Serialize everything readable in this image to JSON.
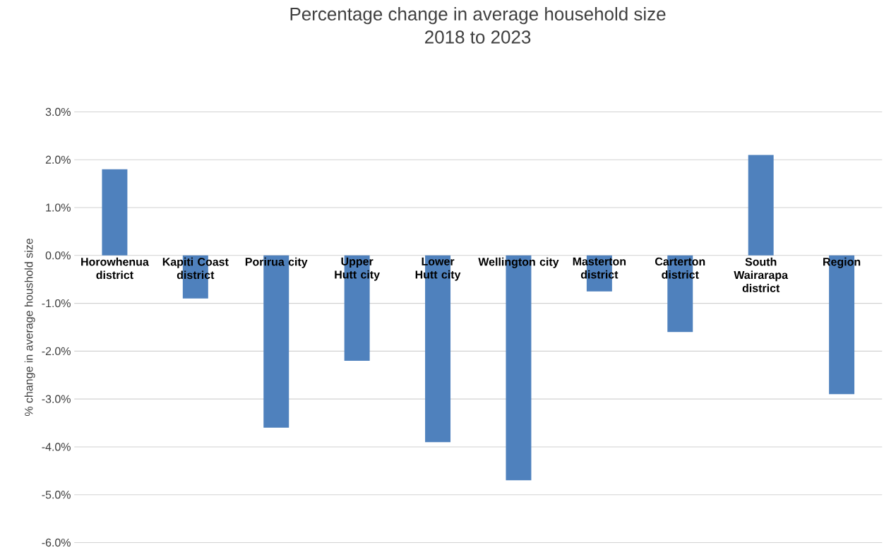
{
  "chart_data": {
    "type": "bar",
    "title": "Percentage change in average household size",
    "subtitle": "2018 to 2023",
    "ylabel": "% change in average houshold size",
    "categories": [
      "Horowhenua district",
      "Kapiti Coast district",
      "Porirua city",
      "Upper Hutt city",
      "Lower Hutt city",
      "Wellington city",
      "Masterton district",
      "Carterton district",
      "South Wairarapa district",
      "Region"
    ],
    "values": [
      1.8,
      -0.9,
      -3.6,
      -2.2,
      -3.9,
      -4.7,
      -0.75,
      -1.6,
      2.1,
      -2.9
    ],
    "color": "#4f81bd",
    "ylim": [
      -6,
      3
    ],
    "yticks": [
      {
        "value": 3,
        "label": "3.0%"
      },
      {
        "value": 2,
        "label": "2.0%"
      },
      {
        "value": 1,
        "label": "1.0%"
      },
      {
        "value": 0,
        "label": "0.0%"
      },
      {
        "value": -1,
        "label": "-1.0%"
      },
      {
        "value": -2,
        "label": "-2.0%"
      },
      {
        "value": -3,
        "label": "-3.0%"
      },
      {
        "value": -4,
        "label": "-4.0%"
      },
      {
        "value": -5,
        "label": "-5.0%"
      },
      {
        "value": -6,
        "label": "-6.0%"
      }
    ],
    "grid": "y"
  }
}
